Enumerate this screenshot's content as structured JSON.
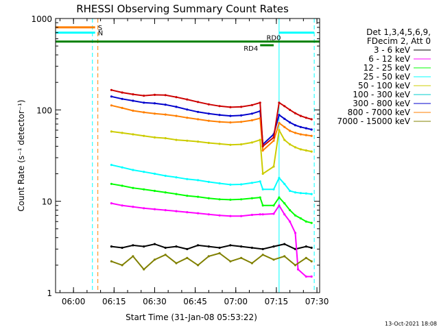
{
  "chart_data": {
    "type": "line",
    "title": "RHESSI Observing Summary Count Rates",
    "xlabel": "Start Time (31-Jan-08 05:53:22)",
    "ylabel": "Count Rate (s⁻¹ detector⁻¹)",
    "y_scale": "log",
    "ylim": [
      1,
      1000
    ],
    "xlim": [
      "05:53:22",
      "07:31:00"
    ],
    "x_ticks": [
      "06:00",
      "06:15",
      "06:30",
      "06:45",
      "07:00",
      "07:15",
      "07:30"
    ],
    "y_ticks": [
      "1",
      "10",
      "100",
      "1000"
    ],
    "legend": {
      "position": "right",
      "header": [
        "Det 1,3,4,5,6,9,",
        "FDecim 2, Att 0"
      ]
    },
    "series": [
      {
        "name": "3 - 6 keV",
        "color": "#000000",
        "x": [
          "06:14",
          "06:18",
          "06:22",
          "06:26",
          "06:30",
          "06:34",
          "06:38",
          "06:42",
          "06:46",
          "06:50",
          "06:54",
          "06:58",
          "07:02",
          "07:06",
          "07:10",
          "07:14",
          "07:18",
          "07:22",
          "07:26",
          "07:28"
        ],
        "values": [
          3.2,
          3.1,
          3.3,
          3.2,
          3.4,
          3.1,
          3.2,
          3.0,
          3.3,
          3.2,
          3.1,
          3.3,
          3.2,
          3.1,
          3.0,
          3.2,
          3.4,
          3.0,
          3.2,
          3.1
        ]
      },
      {
        "name": "6 - 12 keV",
        "color": "#ff00ff",
        "x": [
          "06:14",
          "06:18",
          "06:22",
          "06:26",
          "06:30",
          "06:34",
          "06:38",
          "06:42",
          "06:46",
          "06:50",
          "06:54",
          "06:58",
          "07:02",
          "07:06",
          "07:09",
          "07:10",
          "07:14",
          "07:16",
          "07:18",
          "07:20",
          "07:22",
          "07:23",
          "07:26",
          "07:28"
        ],
        "values": [
          9.5,
          9.0,
          8.7,
          8.4,
          8.2,
          8.0,
          7.8,
          7.6,
          7.4,
          7.2,
          7.0,
          6.9,
          6.9,
          7.1,
          7.2,
          7.2,
          7.3,
          9.0,
          7.2,
          6.0,
          4.5,
          1.8,
          1.5,
          1.5
        ]
      },
      {
        "name": "12 - 25 keV",
        "color": "#00ff00",
        "x": [
          "06:14",
          "06:18",
          "06:22",
          "06:26",
          "06:30",
          "06:34",
          "06:38",
          "06:42",
          "06:46",
          "06:50",
          "06:54",
          "06:58",
          "07:02",
          "07:06",
          "07:09",
          "07:10",
          "07:14",
          "07:16",
          "07:18",
          "07:20",
          "07:22",
          "07:24",
          "07:26",
          "07:28"
        ],
        "values": [
          15.5,
          14.8,
          14.0,
          13.5,
          13.0,
          12.5,
          12.0,
          11.5,
          11.2,
          10.8,
          10.5,
          10.4,
          10.5,
          10.8,
          11.0,
          9.0,
          9.0,
          11.0,
          9.5,
          8.0,
          7.0,
          6.5,
          6.0,
          5.8
        ]
      },
      {
        "name": "25 - 50 keV",
        "color": "#00ffff",
        "x": [
          "06:14",
          "06:18",
          "06:22",
          "06:26",
          "06:30",
          "06:34",
          "06:38",
          "06:42",
          "06:46",
          "06:50",
          "06:54",
          "06:58",
          "07:02",
          "07:06",
          "07:09",
          "07:10",
          "07:14",
          "07:16",
          "07:18",
          "07:20",
          "07:22",
          "07:24",
          "07:26",
          "07:28"
        ],
        "values": [
          25.0,
          23.5,
          22.0,
          21.0,
          20.0,
          19.0,
          18.3,
          17.5,
          17.0,
          16.3,
          15.7,
          15.2,
          15.3,
          15.9,
          16.5,
          13.5,
          13.5,
          18.0,
          15.5,
          13.0,
          12.5,
          12.3,
          12.2,
          12.0
        ]
      },
      {
        "name": "50 - 100 keV",
        "color": "#cccc00",
        "x": [
          "06:14",
          "06:18",
          "06:22",
          "06:26",
          "06:30",
          "06:34",
          "06:38",
          "06:42",
          "06:46",
          "06:50",
          "06:54",
          "06:58",
          "07:02",
          "07:06",
          "07:09",
          "07:10",
          "07:14",
          "07:16",
          "07:18",
          "07:20",
          "07:22",
          "07:24",
          "07:26",
          "07:28"
        ],
        "values": [
          58,
          56,
          54,
          52,
          50,
          49,
          47,
          46,
          45,
          43.5,
          42.5,
          41.5,
          42,
          44,
          47,
          20,
          24,
          60,
          47,
          42,
          39,
          37,
          36,
          35
        ]
      },
      {
        "name": "100 - 300 keV",
        "color": "#00cccc",
        "x": [],
        "values": []
      },
      {
        "name": "300 - 800 keV",
        "color": "#0000cc",
        "x": [
          "06:14",
          "06:18",
          "06:22",
          "06:26",
          "06:30",
          "06:34",
          "06:38",
          "06:42",
          "06:46",
          "06:50",
          "06:54",
          "06:58",
          "07:02",
          "07:06",
          "07:09",
          "07:10",
          "07:14",
          "07:16",
          "07:18",
          "07:20",
          "07:22",
          "07:24",
          "07:26",
          "07:28"
        ],
        "values": [
          140,
          132,
          126,
          120,
          118,
          114,
          108,
          101,
          95,
          91,
          88,
          86,
          87,
          91,
          97,
          42,
          54,
          88,
          80,
          73,
          68,
          65,
          63,
          61
        ]
      },
      {
        "name": "800 - 7000 keV",
        "color": "#ff7f00",
        "x": [
          "06:14",
          "06:18",
          "06:22",
          "06:26",
          "06:30",
          "06:34",
          "06:38",
          "06:42",
          "06:46",
          "06:50",
          "06:54",
          "06:58",
          "07:02",
          "07:06",
          "07:09",
          "07:10",
          "07:14",
          "07:16",
          "07:18",
          "07:20",
          "07:22",
          "07:24",
          "07:26",
          "07:28"
        ],
        "values": [
          112,
          105,
          98,
          94,
          91,
          89,
          86,
          82,
          79,
          76,
          74,
          73,
          74,
          77,
          81,
          36,
          46,
          72,
          65,
          59,
          56,
          54,
          53,
          52
        ]
      },
      {
        "name": "7000 - 15000 keV",
        "color": "#808000",
        "x": [
          "06:14",
          "06:18",
          "06:22",
          "06:26",
          "06:30",
          "06:34",
          "06:38",
          "06:42",
          "06:46",
          "06:50",
          "06:54",
          "06:58",
          "07:02",
          "07:06",
          "07:10",
          "07:14",
          "07:18",
          "07:22",
          "07:26",
          "07:28"
        ],
        "values": [
          2.2,
          2.0,
          2.5,
          1.8,
          2.3,
          2.6,
          2.1,
          2.4,
          2.0,
          2.5,
          2.7,
          2.2,
          2.4,
          2.1,
          2.6,
          2.3,
          2.5,
          2.0,
          2.4,
          2.2
        ]
      },
      {
        "name": "",
        "color": "#cc0000",
        "x": [
          "06:14",
          "06:18",
          "06:22",
          "06:26",
          "06:30",
          "06:34",
          "06:38",
          "06:42",
          "06:46",
          "06:50",
          "06:54",
          "06:58",
          "07:02",
          "07:06",
          "07:09",
          "07:10",
          "07:14",
          "07:16",
          "07:18",
          "07:20",
          "07:22",
          "07:24",
          "07:26",
          "07:28"
        ],
        "values": [
          165,
          155,
          148,
          143,
          146,
          145,
          138,
          130,
          122,
          115,
          110,
          107,
          108,
          113,
          120,
          40,
          50,
          120,
          110,
          100,
          92,
          86,
          82,
          79
        ]
      }
    ],
    "flags": [
      {
        "label": "S",
        "color": "#ff7f00",
        "y": 800,
        "x_start": "05:53:22",
        "x_end": "06:08"
      },
      {
        "label": "N",
        "color": "#00ffff",
        "y": 700,
        "x_start": "05:53:22",
        "x_end": "06:08"
      },
      {
        "label": "",
        "color": "#00ffff",
        "y": 700,
        "x_start": "07:16",
        "x_end": "07:29"
      },
      {
        "label": "RD0",
        "color": "#008000",
        "y": 560,
        "x_start": "05:53:22",
        "x_end": "07:31:00"
      },
      {
        "label": "RD4",
        "color": "#008000",
        "y": 510,
        "x_start": "07:09",
        "x_end": "07:14"
      }
    ],
    "vertical_lines": [
      {
        "color": "#00ffff",
        "style": "dashed",
        "x": "06:07"
      },
      {
        "color": "#ff7f00",
        "style": "dashed",
        "x": "06:09"
      },
      {
        "color": "#00ffff",
        "style": "solid",
        "x": "07:16"
      },
      {
        "color": "#00ffff",
        "style": "dashed",
        "x": "07:29"
      }
    ],
    "timestamp": "13-Oct-2021 18:08"
  }
}
